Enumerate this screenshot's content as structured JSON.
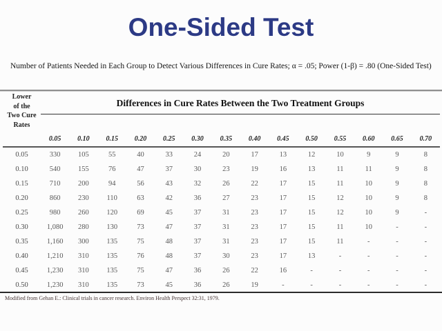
{
  "page": {
    "title": "One-Sided Test",
    "caption": "Number of Patients Needed in Each Group to Detect Various Differences in Cure Rates; α = .05; Power (1-β) = .80 (One-Sided Test)",
    "footnote": "Modified from Gehan E.: Clinical trials in cancer research. Environ Health Perspect 32:31, 1979."
  },
  "colors": {
    "title_text": "#2c3a85",
    "background": "#fcfcfc",
    "header_text": "#222222",
    "data_text": "#585858"
  },
  "chart_data": {
    "type": "table",
    "title": "One-Sided Test",
    "row_header_lines": [
      "Lower",
      "of the",
      "Two Cure",
      "Rates"
    ],
    "row_header_label": "Lower of the Two Cure Rates",
    "group_header": "Differences in Cure Rates Between the Two Treatment Groups",
    "columns": [
      "0.05",
      "0.10",
      "0.15",
      "0.20",
      "0.25",
      "0.30",
      "0.35",
      "0.40",
      "0.45",
      "0.50",
      "0.55",
      "0.60",
      "0.65",
      "0.70"
    ],
    "rows": [
      {
        "label": "0.05",
        "values": [
          "330",
          "105",
          "55",
          "40",
          "33",
          "24",
          "20",
          "17",
          "13",
          "12",
          "10",
          "9",
          "9",
          "8"
        ]
      },
      {
        "label": "0.10",
        "values": [
          "540",
          "155",
          "76",
          "47",
          "37",
          "30",
          "23",
          "19",
          "16",
          "13",
          "11",
          "11",
          "9",
          "8"
        ]
      },
      {
        "label": "0.15",
        "values": [
          "710",
          "200",
          "94",
          "56",
          "43",
          "32",
          "26",
          "22",
          "17",
          "15",
          "11",
          "10",
          "9",
          "8"
        ]
      },
      {
        "label": "0.20",
        "values": [
          "860",
          "230",
          "110",
          "63",
          "42",
          "36",
          "27",
          "23",
          "17",
          "15",
          "12",
          "10",
          "9",
          "8"
        ]
      },
      {
        "label": "0.25",
        "values": [
          "980",
          "260",
          "120",
          "69",
          "45",
          "37",
          "31",
          "23",
          "17",
          "15",
          "12",
          "10",
          "9",
          "-"
        ]
      },
      {
        "label": "0.30",
        "values": [
          "1,080",
          "280",
          "130",
          "73",
          "47",
          "37",
          "31",
          "23",
          "17",
          "15",
          "11",
          "10",
          "-",
          "-"
        ]
      },
      {
        "label": "0.35",
        "values": [
          "1,160",
          "300",
          "135",
          "75",
          "48",
          "37",
          "31",
          "23",
          "17",
          "15",
          "11",
          "-",
          "-",
          "-"
        ]
      },
      {
        "label": "0.40",
        "values": [
          "1,210",
          "310",
          "135",
          "76",
          "48",
          "37",
          "30",
          "23",
          "17",
          "13",
          "-",
          "-",
          "-",
          "-"
        ]
      },
      {
        "label": "0.45",
        "values": [
          "1,230",
          "310",
          "135",
          "75",
          "47",
          "36",
          "26",
          "22",
          "16",
          "-",
          "-",
          "-",
          "-",
          "-"
        ]
      },
      {
        "label": "0.50",
        "values": [
          "1,230",
          "310",
          "135",
          "73",
          "45",
          "36",
          "26",
          "19",
          "-",
          "-",
          "-",
          "-",
          "-",
          "-"
        ]
      }
    ]
  }
}
